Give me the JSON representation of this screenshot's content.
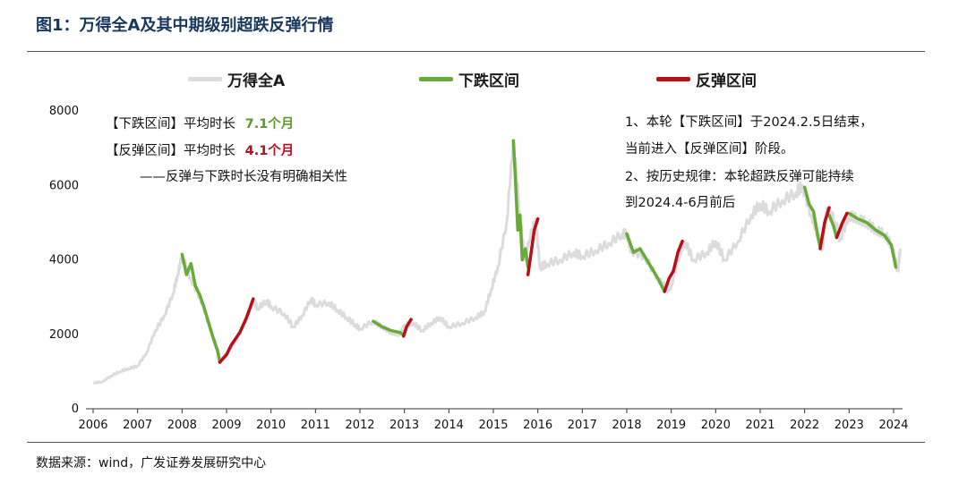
{
  "figure": {
    "title": "图1：万得全A及其中期级别超跌反弹行情",
    "source": "数据来源：wind，广发证券发展研究中心"
  },
  "legend": [
    {
      "label": "万得全A",
      "color": "#dcdcdc"
    },
    {
      "label": "下跌区间",
      "color": "#6aaa3a"
    },
    {
      "label": "反弹区间",
      "color": "#b8101a"
    }
  ],
  "notes": {
    "fall_label": "【下跌区间】平均时长",
    "fall_value": "7.1个月",
    "rebound_label": "【反弹区间】平均时长",
    "rebound_value": "4.1个月",
    "correlation": "——反弹与下跌时长没有明确相关性",
    "right_1": "1、本轮【下跌区间】于2024.2.5日结束，",
    "right_2": "当前进入【反弹区间】阶段。",
    "right_3": "2、按历史规律：本轮超跌反弹可能持续",
    "right_4": "到2024.4-6月前后"
  },
  "colors": {
    "index": "#dcdcdc",
    "fall": "#6aaa3a",
    "rebound": "#b8101a",
    "title": "#17375e",
    "fall_text": "#5a9a2a",
    "rebound_text": "#b8101a"
  },
  "chart_data": {
    "type": "line",
    "xlabel": "",
    "ylabel": "",
    "xlim": [
      2006.0,
      2024.1
    ],
    "ylim": [
      0,
      8000
    ],
    "yticks": [
      0,
      2000,
      4000,
      6000,
      8000
    ],
    "xticks": [
      "2006",
      "2007",
      "2008",
      "2009",
      "2010",
      "2011",
      "2012",
      "2013",
      "2014",
      "2015",
      "2016",
      "2017",
      "2018",
      "2019",
      "2020",
      "2021",
      "2022",
      "2023",
      "2024"
    ],
    "grid": false,
    "legend_position": "top",
    "series": [
      {
        "name": "万得全A",
        "role": "index",
        "points": [
          [
            2006.0,
            700
          ],
          [
            2006.2,
            720
          ],
          [
            2006.4,
            880
          ],
          [
            2006.6,
            1000
          ],
          [
            2006.8,
            1080
          ],
          [
            2007.0,
            1150
          ],
          [
            2007.2,
            1500
          ],
          [
            2007.4,
            2100
          ],
          [
            2007.6,
            2500
          ],
          [
            2007.8,
            3100
          ],
          [
            2007.9,
            3600
          ],
          [
            2008.0,
            4100
          ],
          [
            2008.2,
            3500
          ],
          [
            2008.4,
            3000
          ],
          [
            2008.6,
            2300
          ],
          [
            2008.8,
            1600
          ],
          [
            2008.85,
            1250
          ],
          [
            2009.0,
            1500
          ],
          [
            2009.2,
            1800
          ],
          [
            2009.4,
            2300
          ],
          [
            2009.6,
            2900
          ],
          [
            2009.7,
            2700
          ],
          [
            2009.9,
            2900
          ],
          [
            2010.0,
            2750
          ],
          [
            2010.3,
            2550
          ],
          [
            2010.5,
            2200
          ],
          [
            2010.7,
            2500
          ],
          [
            2010.9,
            2950
          ],
          [
            2011.0,
            2800
          ],
          [
            2011.3,
            2850
          ],
          [
            2011.5,
            2650
          ],
          [
            2011.7,
            2450
          ],
          [
            2011.9,
            2250
          ],
          [
            2012.0,
            2150
          ],
          [
            2012.3,
            2350
          ],
          [
            2012.5,
            2200
          ],
          [
            2012.7,
            2050
          ],
          [
            2012.9,
            2000
          ],
          [
            2013.0,
            2250
          ],
          [
            2013.2,
            2300
          ],
          [
            2013.4,
            2100
          ],
          [
            2013.6,
            2300
          ],
          [
            2013.8,
            2450
          ],
          [
            2014.0,
            2200
          ],
          [
            2014.3,
            2300
          ],
          [
            2014.6,
            2450
          ],
          [
            2014.8,
            2600
          ],
          [
            2014.95,
            3200
          ],
          [
            2015.1,
            3800
          ],
          [
            2015.3,
            5000
          ],
          [
            2015.45,
            7200
          ],
          [
            2015.6,
            5200
          ],
          [
            2015.7,
            4000
          ],
          [
            2015.8,
            4500
          ],
          [
            2015.95,
            5100
          ],
          [
            2016.05,
            3800
          ],
          [
            2016.2,
            3900
          ],
          [
            2016.5,
            4000
          ],
          [
            2016.8,
            4200
          ],
          [
            2017.0,
            4100
          ],
          [
            2017.3,
            4250
          ],
          [
            2017.6,
            4450
          ],
          [
            2017.9,
            4700
          ],
          [
            2018.0,
            4700
          ],
          [
            2018.1,
            4250
          ],
          [
            2018.4,
            4100
          ],
          [
            2018.7,
            3500
          ],
          [
            2018.9,
            3200
          ],
          [
            2019.0,
            3300
          ],
          [
            2019.2,
            4200
          ],
          [
            2019.3,
            4500
          ],
          [
            2019.5,
            4000
          ],
          [
            2019.8,
            4200
          ],
          [
            2020.0,
            4500
          ],
          [
            2020.2,
            4000
          ],
          [
            2020.5,
            4500
          ],
          [
            2020.8,
            5200
          ],
          [
            2021.0,
            5500
          ],
          [
            2021.2,
            5300
          ],
          [
            2021.5,
            5600
          ],
          [
            2021.8,
            5800
          ],
          [
            2021.95,
            6000
          ],
          [
            2022.15,
            5200
          ],
          [
            2022.3,
            4700
          ],
          [
            2022.4,
            4300
          ],
          [
            2022.5,
            5400
          ],
          [
            2022.7,
            5000
          ],
          [
            2022.8,
            4550
          ],
          [
            2023.0,
            5200
          ],
          [
            2023.2,
            5100
          ],
          [
            2023.4,
            5000
          ],
          [
            2023.6,
            4800
          ],
          [
            2023.8,
            4700
          ],
          [
            2023.95,
            4400
          ],
          [
            2024.1,
            3700
          ],
          [
            2024.15,
            4300
          ]
        ]
      },
      {
        "name": "下跌区间",
        "role": "fall",
        "segments": [
          [
            [
              2008.0,
              4150
            ],
            [
              2008.1,
              3600
            ],
            [
              2008.2,
              3900
            ],
            [
              2008.3,
              3300
            ],
            [
              2008.4,
              3050
            ],
            [
              2008.5,
              2700
            ],
            [
              2008.6,
              2300
            ],
            [
              2008.7,
              1900
            ],
            [
              2008.8,
              1550
            ],
            [
              2008.85,
              1250
            ]
          ],
          [
            [
              2012.3,
              2350
            ],
            [
              2012.5,
              2200
            ],
            [
              2012.7,
              2100
            ],
            [
              2012.9,
              2050
            ],
            [
              2012.98,
              1980
            ]
          ],
          [
            [
              2015.45,
              7200
            ],
            [
              2015.5,
              6100
            ],
            [
              2015.55,
              4800
            ],
            [
              2015.6,
              5200
            ],
            [
              2015.65,
              4000
            ],
            [
              2015.72,
              4300
            ],
            [
              2015.78,
              3800
            ]
          ],
          [
            [
              2018.0,
              4700
            ],
            [
              2018.15,
              4200
            ],
            [
              2018.3,
              4300
            ],
            [
              2018.5,
              3900
            ],
            [
              2018.7,
              3500
            ],
            [
              2018.85,
              3150
            ]
          ],
          [
            [
              2022.0,
              5950
            ],
            [
              2022.1,
              5500
            ],
            [
              2022.2,
              5300
            ],
            [
              2022.3,
              4600
            ],
            [
              2022.35,
              4350
            ]
          ],
          [
            [
              2022.55,
              5200
            ],
            [
              2022.65,
              4900
            ],
            [
              2022.72,
              4600
            ]
          ],
          [
            [
              2023.0,
              5250
            ],
            [
              2023.2,
              5100
            ],
            [
              2023.4,
              5000
            ],
            [
              2023.6,
              4800
            ],
            [
              2023.8,
              4650
            ],
            [
              2023.95,
              4400
            ],
            [
              2024.05,
              3800
            ]
          ]
        ]
      },
      {
        "name": "反弹区间",
        "role": "rebound",
        "segments": [
          [
            [
              2008.85,
              1250
            ],
            [
              2009.0,
              1450
            ],
            [
              2009.1,
              1700
            ],
            [
              2009.3,
              2050
            ],
            [
              2009.45,
              2450
            ],
            [
              2009.6,
              2950
            ]
          ],
          [
            [
              2012.98,
              1950
            ],
            [
              2013.05,
              2200
            ],
            [
              2013.15,
              2400
            ]
          ],
          [
            [
              2015.78,
              3600
            ],
            [
              2015.85,
              4200
            ],
            [
              2015.92,
              4800
            ],
            [
              2016.0,
              5100
            ]
          ],
          [
            [
              2018.85,
              3150
            ],
            [
              2018.95,
              3500
            ],
            [
              2019.05,
              3700
            ],
            [
              2019.15,
              4200
            ],
            [
              2019.25,
              4500
            ]
          ],
          [
            [
              2022.35,
              4300
            ],
            [
              2022.45,
              5000
            ],
            [
              2022.55,
              5400
            ]
          ],
          [
            [
              2022.72,
              4600
            ],
            [
              2022.85,
              5000
            ],
            [
              2022.95,
              5250
            ]
          ]
        ]
      }
    ]
  }
}
